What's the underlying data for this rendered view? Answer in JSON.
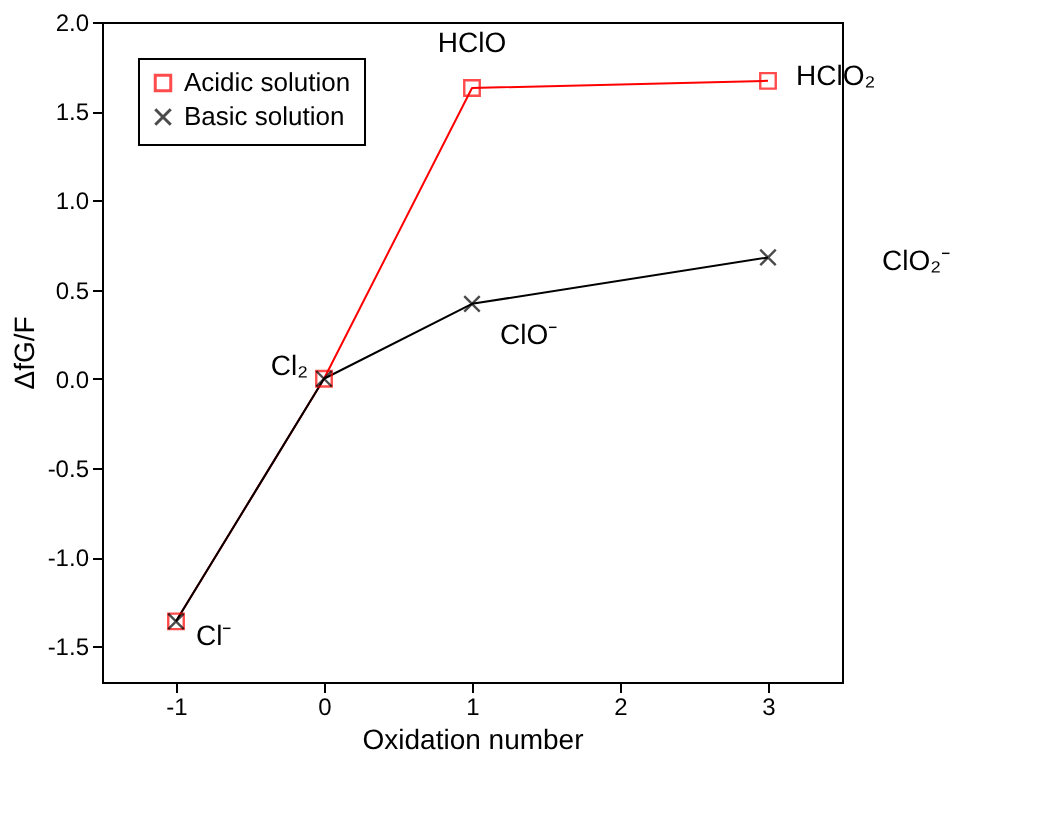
{
  "chart_data": {
    "type": "line",
    "xlabel": "Oxidation number",
    "ylabel": "ΔfG/F",
    "x": [
      -1,
      0,
      1,
      3
    ],
    "series": [
      {
        "name": "Acidic solution",
        "color": "#ff0000",
        "marker": "square",
        "values": [
          -1.36,
          0,
          1.63,
          1.67
        ]
      },
      {
        "name": "Basic solution",
        "color": "#000000",
        "marker": "cross",
        "values": [
          -1.36,
          0,
          0.42,
          0.68
        ]
      }
    ],
    "xlim": [
      -1.5,
      3.5
    ],
    "xticks": [
      {
        "value": -1,
        "label": "-1"
      },
      0,
      1,
      2,
      3
    ],
    "ylim": [
      -1.7,
      2.0
    ],
    "yticks": [
      {
        "value": -1.5,
        "label": "-1.5"
      },
      {
        "value": -1,
        "label": "-1.0"
      },
      {
        "value": -0.5,
        "label": "-0.5"
      },
      {
        "value": 0,
        "label": "0.0"
      },
      0.5,
      {
        "value": 1,
        "label": "1.0"
      },
      1.5,
      {
        "value": 2,
        "label": "2.0"
      }
    ],
    "grid": false,
    "legend": "top left",
    "line_style": "solid",
    "annotations": [
      {
        "text": "Cl⁻",
        "x": -1,
        "y": -1.36
      },
      {
        "text": "Cl₂",
        "x": 0,
        "y": 0
      },
      {
        "text": "HClO",
        "x": 1,
        "y": 1.63
      },
      {
        "text": "HClO₂",
        "x": 3,
        "y": 1.67
      },
      {
        "text": "ClO⁻",
        "x": 1,
        "y": 0.42
      },
      "ClO₂⁻"
    ]
  }
}
